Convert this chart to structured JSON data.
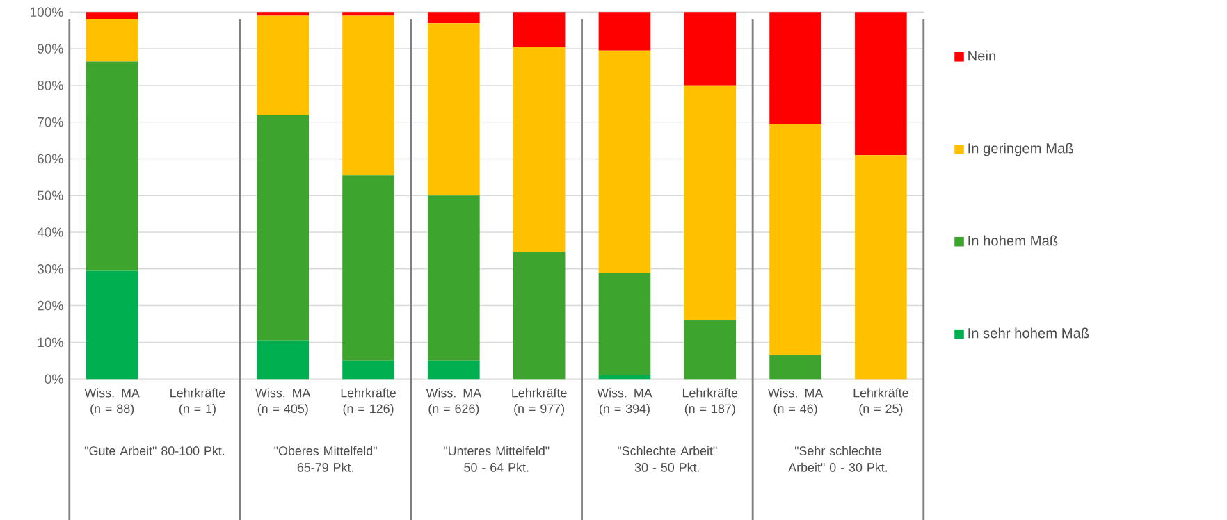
{
  "chart_data": {
    "type": "bar",
    "stacked": true,
    "categories": [
      "Wiss. MA (n = 88)",
      "Lehrkräfte (n = 1)",
      "Wiss. MA (n = 405)",
      "Lehrkräfte (n = 126)",
      "Wiss. MA (n = 626)",
      "Lehrkräfte (n = 977)",
      "Wiss. MA (n = 394)",
      "Lehrkräfte (n = 187)",
      "Wiss. MA (n = 46)",
      "Lehrkräfte (n = 25)"
    ],
    "series": [
      {
        "name": "In sehr hohem Maß",
        "color": "#00b050",
        "values": [
          29.5,
          null,
          10.5,
          5,
          5,
          0,
          1,
          0,
          0,
          0
        ]
      },
      {
        "name": "In hohem Maß",
        "color": "#3da42d",
        "values": [
          57,
          null,
          61.5,
          50.5,
          45,
          34.5,
          28,
          16,
          6.5,
          0
        ]
      },
      {
        "name": "In geringem Maß",
        "color": "#ffc000",
        "values": [
          11.5,
          null,
          27,
          43.5,
          47,
          56,
          60.5,
          64,
          63,
          61
        ]
      },
      {
        "name": "Nein",
        "color": "#ff0000",
        "values": [
          2,
          null,
          1,
          1,
          3,
          9.5,
          10.5,
          20,
          30.5,
          39
        ]
      }
    ],
    "annotations": [
      "\"Gute Arbeit\" 80-100 Pkt.",
      "\"Oberes Mittelfeld\" 65-79 Pkt.",
      "\"Unteres Mittelfeld\" 50 - 64 Pkt.",
      "\"Schlechte Arbeit\" 30 - 50 Pkt.",
      "\"Sehr schlechte Arbeit\" 0 - 30 Pkt."
    ],
    "ylim": [
      0,
      100
    ],
    "yticks": [
      {
        "value": 0,
        "label": "0%"
      },
      {
        "value": 10,
        "label": "10%"
      },
      {
        "value": 20,
        "label": "20%"
      },
      {
        "value": 30,
        "label": "30%"
      },
      {
        "value": 40,
        "label": "40%"
      },
      {
        "value": 50,
        "label": "50%"
      },
      {
        "value": 60,
        "label": "60%"
      },
      {
        "value": 70,
        "label": "70%"
      },
      {
        "value": 80,
        "label": "80%"
      },
      {
        "value": 90,
        "label": "90%"
      },
      {
        "value": 100,
        "label": "100%"
      }
    ],
    "grid": "y",
    "legend": "right"
  }
}
